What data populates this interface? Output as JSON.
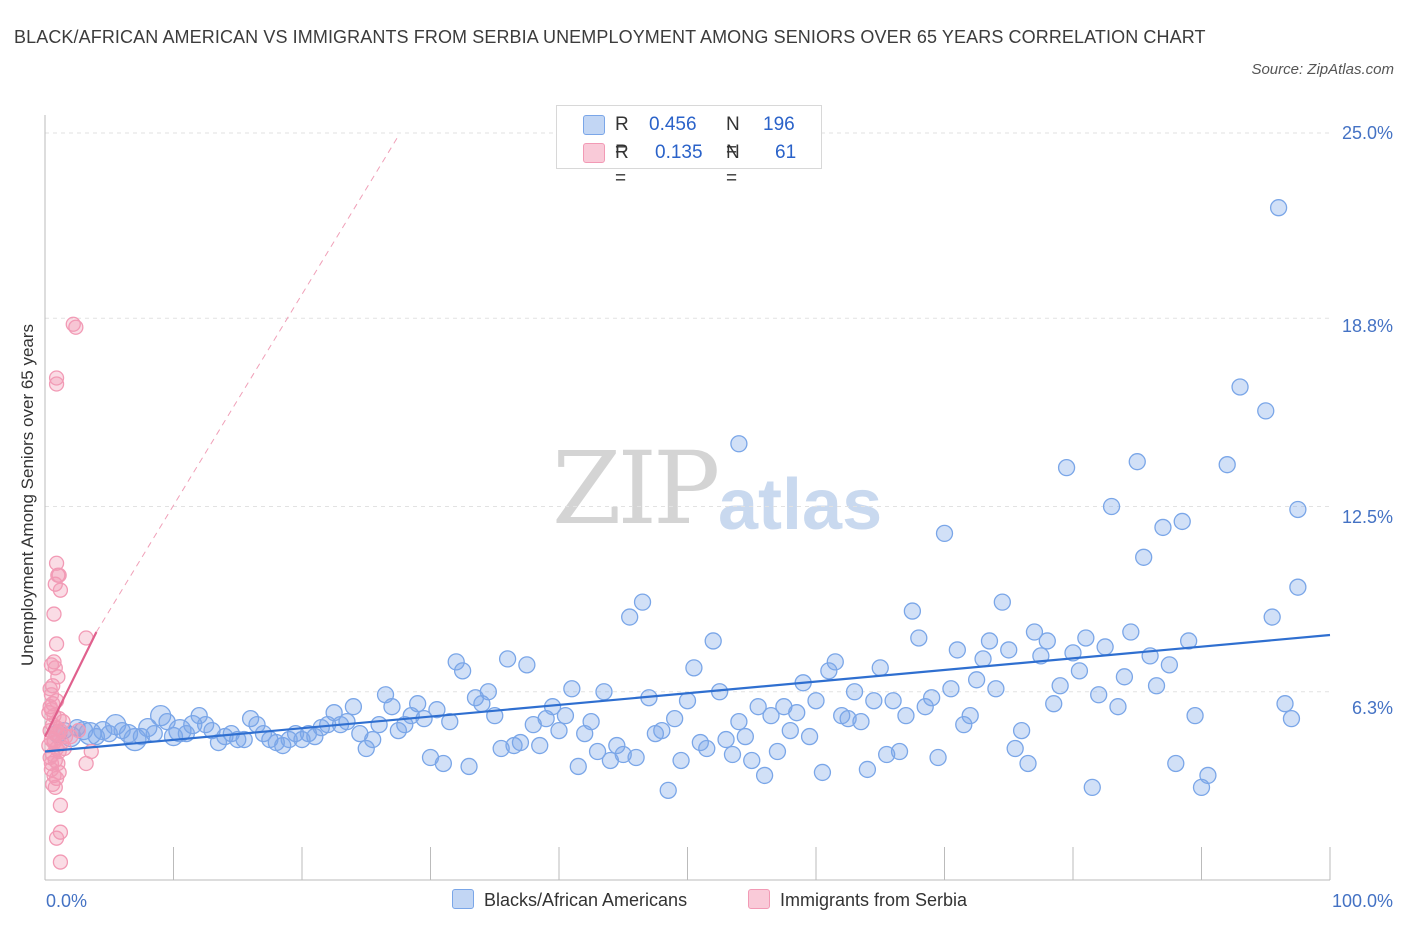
{
  "chart_data": {
    "type": "scatter",
    "title": "BLACK/AFRICAN AMERICAN VS IMMIGRANTS FROM SERBIA UNEMPLOYMENT AMONG SENIORS OVER 65 YEARS CORRELATION CHART",
    "source": "Source: ZipAtlas.com",
    "ylabel": "Unemployment Among Seniors over 65 years",
    "xlabel": "",
    "xlim": [
      0,
      100
    ],
    "ylim": [
      0,
      25
    ],
    "x_tick_labels": [
      "0.0%",
      "100.0%"
    ],
    "y_ticks": [
      6.3,
      12.5,
      18.8,
      25.0
    ],
    "y_tick_labels": [
      "6.3%",
      "12.5%",
      "18.8%",
      "25.0%"
    ],
    "watermark": {
      "zip": "ZIP",
      "atlas": "atlas"
    },
    "legend": {
      "r_label": "R =",
      "n_label": "N =",
      "entries": [
        {
          "name": "Blacks/African Americans",
          "r": "0.456",
          "n": "196",
          "color": "#7aa6e8"
        },
        {
          "name": "Immigrants from Serbia",
          "r": "0.135",
          "n": "61",
          "color": "#f29ab5"
        }
      ]
    },
    "series": [
      {
        "name": "Blacks/African Americans",
        "color": "#7aa6e8",
        "line_color": "#2f6fd0",
        "trend": {
          "x": [
            0,
            100
          ],
          "y": [
            4.3,
            8.2
          ]
        },
        "points": [
          [
            1,
            4.9
          ],
          [
            1.5,
            5.0
          ],
          [
            2,
            4.8
          ],
          [
            2.5,
            5.1
          ],
          [
            3,
            5.0
          ],
          [
            3.5,
            4.9
          ],
          [
            4,
            4.8
          ],
          [
            4.5,
            5.0
          ],
          [
            5,
            4.9
          ],
          [
            5.5,
            5.2
          ],
          [
            6,
            5.0
          ],
          [
            6.5,
            4.9
          ],
          [
            7,
            4.7
          ],
          [
            7.5,
            4.8
          ],
          [
            8,
            5.1
          ],
          [
            8.5,
            4.9
          ],
          [
            9,
            5.5
          ],
          [
            9.5,
            5.3
          ],
          [
            10,
            4.8
          ],
          [
            10.5,
            5.0
          ],
          [
            11,
            4.9
          ],
          [
            11.5,
            5.2
          ],
          [
            12,
            5.5
          ],
          [
            12.5,
            5.2
          ],
          [
            13,
            5.0
          ],
          [
            13.5,
            4.6
          ],
          [
            14,
            4.8
          ],
          [
            14.5,
            4.9
          ],
          [
            15,
            4.7
          ],
          [
            15.5,
            4.7
          ],
          [
            16,
            5.4
          ],
          [
            16.5,
            5.2
          ],
          [
            17,
            4.9
          ],
          [
            17.5,
            4.7
          ],
          [
            18,
            4.6
          ],
          [
            18.5,
            4.5
          ],
          [
            19,
            4.7
          ],
          [
            19.5,
            4.9
          ],
          [
            20,
            4.7
          ],
          [
            20.5,
            4.9
          ],
          [
            21,
            4.8
          ],
          [
            21.5,
            5.1
          ],
          [
            22,
            5.2
          ],
          [
            22.5,
            5.6
          ],
          [
            23,
            5.2
          ],
          [
            23.5,
            5.3
          ],
          [
            24,
            5.8
          ],
          [
            24.5,
            4.9
          ],
          [
            25,
            4.4
          ],
          [
            25.5,
            4.7
          ],
          [
            26,
            5.2
          ],
          [
            26.5,
            6.2
          ],
          [
            27,
            5.8
          ],
          [
            27.5,
            5.0
          ],
          [
            28,
            5.2
          ],
          [
            28.5,
            5.5
          ],
          [
            29,
            5.9
          ],
          [
            29.5,
            5.4
          ],
          [
            30,
            4.1
          ],
          [
            30.5,
            5.7
          ],
          [
            31,
            3.9
          ],
          [
            31.5,
            5.3
          ],
          [
            32,
            7.3
          ],
          [
            32.5,
            7.0
          ],
          [
            33,
            3.8
          ],
          [
            33.5,
            6.1
          ],
          [
            34,
            5.9
          ],
          [
            34.5,
            6.3
          ],
          [
            35,
            5.5
          ],
          [
            35.5,
            4.4
          ],
          [
            36,
            7.4
          ],
          [
            36.5,
            4.5
          ],
          [
            37,
            4.6
          ],
          [
            37.5,
            7.2
          ],
          [
            38,
            5.2
          ],
          [
            38.5,
            4.5
          ],
          [
            39,
            5.4
          ],
          [
            39.5,
            5.8
          ],
          [
            40,
            5.0
          ],
          [
            40.5,
            5.5
          ],
          [
            41,
            6.4
          ],
          [
            41.5,
            3.8
          ],
          [
            42,
            4.9
          ],
          [
            42.5,
            5.3
          ],
          [
            43,
            4.3
          ],
          [
            43.5,
            6.3
          ],
          [
            44,
            4.0
          ],
          [
            44.5,
            4.5
          ],
          [
            45,
            4.2
          ],
          [
            45.5,
            8.8
          ],
          [
            46,
            4.1
          ],
          [
            46.5,
            9.3
          ],
          [
            47,
            6.1
          ],
          [
            47.5,
            4.9
          ],
          [
            48,
            5.0
          ],
          [
            48.5,
            3.0
          ],
          [
            49,
            5.4
          ],
          [
            49.5,
            4.0
          ],
          [
            50,
            6.0
          ],
          [
            50.5,
            7.1
          ],
          [
            51,
            4.6
          ],
          [
            51.5,
            4.4
          ],
          [
            52,
            8.0
          ],
          [
            52.5,
            6.3
          ],
          [
            53,
            4.7
          ],
          [
            53.5,
            4.2
          ],
          [
            54,
            5.3
          ],
          [
            54.5,
            4.8
          ],
          [
            55,
            4.0
          ],
          [
            55.5,
            5.8
          ],
          [
            56,
            3.5
          ],
          [
            56.5,
            5.5
          ],
          [
            57,
            4.3
          ],
          [
            57.5,
            5.8
          ],
          [
            58,
            5.0
          ],
          [
            58.5,
            5.6
          ],
          [
            59,
            6.6
          ],
          [
            59.5,
            4.8
          ],
          [
            60,
            6.0
          ],
          [
            60.5,
            3.6
          ],
          [
            61,
            7.0
          ],
          [
            61.5,
            7.3
          ],
          [
            62,
            5.5
          ],
          [
            62.5,
            5.4
          ],
          [
            63,
            6.3
          ],
          [
            63.5,
            5.3
          ],
          [
            64,
            3.7
          ],
          [
            64.5,
            6.0
          ],
          [
            65,
            7.1
          ],
          [
            65.5,
            4.2
          ],
          [
            66,
            6.0
          ],
          [
            66.5,
            4.3
          ],
          [
            67,
            5.5
          ],
          [
            67.5,
            9.0
          ],
          [
            68,
            8.1
          ],
          [
            68.5,
            5.8
          ],
          [
            69,
            6.1
          ],
          [
            69.5,
            4.1
          ],
          [
            70,
            11.6
          ],
          [
            70.5,
            6.4
          ],
          [
            71,
            7.7
          ],
          [
            71.5,
            5.2
          ],
          [
            72,
            5.5
          ],
          [
            72.5,
            6.7
          ],
          [
            73,
            7.4
          ],
          [
            73.5,
            8.0
          ],
          [
            74,
            6.4
          ],
          [
            74.5,
            9.3
          ],
          [
            75,
            7.7
          ],
          [
            75.5,
            4.4
          ],
          [
            76,
            5.0
          ],
          [
            76.5,
            3.9
          ],
          [
            77,
            8.3
          ],
          [
            77.5,
            7.5
          ],
          [
            78,
            8.0
          ],
          [
            78.5,
            5.9
          ],
          [
            79,
            6.5
          ],
          [
            79.5,
            13.8
          ],
          [
            80,
            7.6
          ],
          [
            80.5,
            7.0
          ],
          [
            81,
            8.1
          ],
          [
            81.5,
            3.1
          ],
          [
            82,
            6.2
          ],
          [
            82.5,
            7.8
          ],
          [
            83,
            12.5
          ],
          [
            83.5,
            5.8
          ],
          [
            84,
            6.8
          ],
          [
            84.5,
            8.3
          ],
          [
            85,
            14.0
          ],
          [
            85.5,
            10.8
          ],
          [
            86,
            7.5
          ],
          [
            86.5,
            6.5
          ],
          [
            87,
            11.8
          ],
          [
            87.5,
            7.2
          ],
          [
            88,
            3.9
          ],
          [
            88.5,
            12.0
          ],
          [
            89,
            8.0
          ],
          [
            89.5,
            5.5
          ],
          [
            90,
            3.1
          ],
          [
            90.5,
            3.5
          ],
          [
            96,
            22.5
          ],
          [
            93,
            16.5
          ],
          [
            95,
            15.7
          ],
          [
            54,
            14.6
          ],
          [
            97.5,
            12.4
          ],
          [
            97,
            5.4
          ],
          [
            97.5,
            9.8
          ],
          [
            95.5,
            8.8
          ],
          [
            96.5,
            5.9
          ],
          [
            92,
            13.9
          ]
        ]
      },
      {
        "name": "Immigrants from Serbia",
        "color": "#f29ab5",
        "line_color": "#e0608d",
        "trend": {
          "x": [
            0,
            4
          ],
          "y": [
            4.8,
            8.3
          ]
        },
        "trend_extension": {
          "x": [
            4,
            27.5
          ],
          "y": [
            8.3,
            24.9
          ]
        },
        "points": [
          [
            2.2,
            18.6
          ],
          [
            2.4,
            18.5
          ],
          [
            0.9,
            16.8
          ],
          [
            0.9,
            16.6
          ],
          [
            0.9,
            10.6
          ],
          [
            1.0,
            10.2
          ],
          [
            1.1,
            10.2
          ],
          [
            0.8,
            9.9
          ],
          [
            1.2,
            9.7
          ],
          [
            0.7,
            8.9
          ],
          [
            3.2,
            8.1
          ],
          [
            0.9,
            7.9
          ],
          [
            0.7,
            7.3
          ],
          [
            0.5,
            7.2
          ],
          [
            0.8,
            7.1
          ],
          [
            1.0,
            6.8
          ],
          [
            0.6,
            6.5
          ],
          [
            0.4,
            6.4
          ],
          [
            0.5,
            6.2
          ],
          [
            0.9,
            6.0
          ],
          [
            0.6,
            5.9
          ],
          [
            0.4,
            5.8
          ],
          [
            0.5,
            5.7
          ],
          [
            0.3,
            5.6
          ],
          [
            0.7,
            5.5
          ],
          [
            1.1,
            5.4
          ],
          [
            1.4,
            5.3
          ],
          [
            0.6,
            5.2
          ],
          [
            0.9,
            5.1
          ],
          [
            1.2,
            5.0
          ],
          [
            0.4,
            5.0
          ],
          [
            0.8,
            4.9
          ],
          [
            1.0,
            4.9
          ],
          [
            1.6,
            4.8
          ],
          [
            2.0,
            4.8
          ],
          [
            0.5,
            4.7
          ],
          [
            0.7,
            4.6
          ],
          [
            1.3,
            4.6
          ],
          [
            0.3,
            4.5
          ],
          [
            0.9,
            4.4
          ],
          [
            1.1,
            4.3
          ],
          [
            3.6,
            4.3
          ],
          [
            0.6,
            4.2
          ],
          [
            0.4,
            4.1
          ],
          [
            0.8,
            4.0
          ],
          [
            1.0,
            3.9
          ],
          [
            3.2,
            3.9
          ],
          [
            0.5,
            3.7
          ],
          [
            1.1,
            3.6
          ],
          [
            0.7,
            3.5
          ],
          [
            0.9,
            3.4
          ],
          [
            0.6,
            3.2
          ],
          [
            0.8,
            3.1
          ],
          [
            1.2,
            2.5
          ],
          [
            1.2,
            1.6
          ],
          [
            0.9,
            1.4
          ],
          [
            1.2,
            0.6
          ],
          [
            0.7,
            4.7
          ],
          [
            1.5,
            4.4
          ],
          [
            0.5,
            3.9
          ],
          [
            2.6,
            5.0
          ]
        ]
      }
    ],
    "grid": true
  }
}
